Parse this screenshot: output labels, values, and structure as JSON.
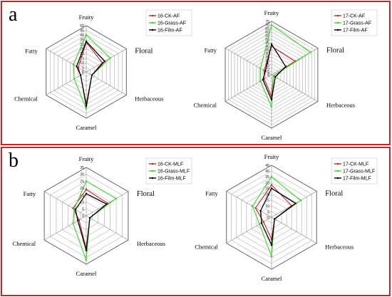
{
  "panels": [
    {
      "letter": "a"
    },
    {
      "letter": "b"
    }
  ],
  "chart_data": [
    {
      "type": "radar",
      "panel": "a",
      "axes": [
        "Fruity",
        "Floral",
        "Herbaceous",
        "Caramel",
        "Chemical",
        "Fatty"
      ],
      "ticks": [
        "0",
        "5",
        "10",
        "15",
        "20",
        "25",
        "30",
        "35",
        "40",
        "45",
        "50"
      ],
      "rmax": 50,
      "legend_position": "top-right",
      "series": [
        {
          "name": "16-CK-AF",
          "color": "#c0272d",
          "values": [
            32,
            20,
            7,
            35,
            7,
            10
          ]
        },
        {
          "name": "16-Grass-AF",
          "color": "#3fd12a",
          "values": [
            40,
            30,
            7,
            40,
            15,
            16
          ]
        },
        {
          "name": "16-Film-AF",
          "color": "#000000",
          "values": [
            33,
            23,
            7,
            37,
            7,
            12
          ]
        }
      ]
    },
    {
      "type": "radar",
      "panel": "a",
      "axes": [
        "Fruity",
        "Floral",
        "Herbaceous",
        "Caramel",
        "Chemical",
        "Fatty"
      ],
      "ticks": [
        "0",
        "5",
        "10",
        "15",
        "20",
        "25",
        "30",
        "35",
        "40",
        "45",
        "50",
        "55",
        "60",
        "65",
        "70",
        "75"
      ],
      "rmax": 75,
      "legend_position": "top-right",
      "series": [
        {
          "name": "17-CK-AF",
          "color": "#c0272d",
          "values": [
            40,
            38,
            3,
            30,
            12,
            12
          ]
        },
        {
          "name": "17-Grass-AF",
          "color": "#3fd12a",
          "values": [
            70,
            63,
            3,
            45,
            18,
            18
          ]
        },
        {
          "name": "17-Film-AF",
          "color": "#000000",
          "values": [
            43,
            23,
            6,
            35,
            14,
            10
          ]
        }
      ]
    },
    {
      "type": "radar",
      "panel": "b",
      "axes": [
        "Fruity",
        "Floral",
        "Herbaceous",
        "Caramel",
        "Chemical",
        "Fatty"
      ],
      "ticks": [
        "0",
        "5",
        "10",
        "15",
        "20",
        "25",
        "30",
        "35"
      ],
      "rmax": 35,
      "legend_position": "top-right",
      "series": [
        {
          "name": "16-CK-MLF",
          "color": "#c0272d",
          "values": [
            19,
            18,
            3,
            24,
            6,
            11
          ]
        },
        {
          "name": "16-Grass-MLF",
          "color": "#3fd12a",
          "values": [
            25,
            25,
            3,
            32,
            11,
            10
          ]
        },
        {
          "name": "16-Film-MLF",
          "color": "#000000",
          "values": [
            16,
            17,
            3,
            25,
            7,
            9
          ]
        }
      ]
    },
    {
      "type": "radar",
      "panel": "b",
      "axes": [
        "Fruity",
        "Floral",
        "Herbaceous",
        "Caramel",
        "Chemical",
        "Fatty"
      ],
      "ticks": [
        "0",
        "5",
        "10",
        "15",
        "20",
        "25",
        "30",
        "35",
        "40",
        "45"
      ],
      "rmax": 45,
      "legend_position": "top-right",
      "series": [
        {
          "name": "17-CK-MLF",
          "color": "#c0272d",
          "values": [
            28,
            20,
            3,
            19,
            8,
            16
          ]
        },
        {
          "name": "17-Grass-MLF",
          "color": "#3fd12a",
          "values": [
            35,
            29,
            3,
            34,
            12,
            19
          ]
        },
        {
          "name": "17-Film-MLF",
          "color": "#000000",
          "values": [
            25,
            24,
            3,
            24,
            10,
            11
          ]
        }
      ]
    }
  ]
}
